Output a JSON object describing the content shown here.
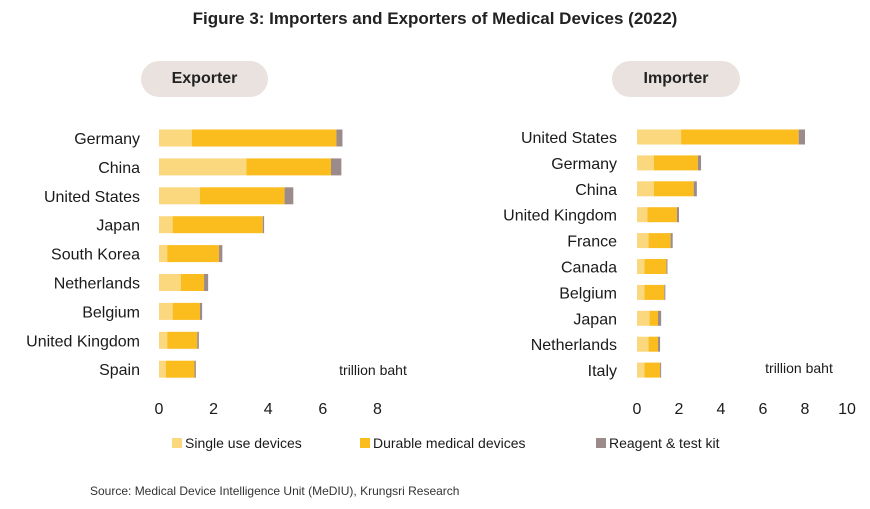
{
  "title": "Figure 3: Importers and Exporters of Medical Devices (2022)",
  "source": "Source: Medical Device Intelligence Unit (MeDIU), Krungsri Research",
  "legend": [
    {
      "name": "Single use devices",
      "color": "#fbd77e"
    },
    {
      "name": "Durable medical devices",
      "color": "#fbbc1e"
    },
    {
      "name": "Reagent & test kit",
      "color": "#9c8b8b"
    }
  ],
  "chart_data": [
    {
      "type": "bar",
      "orientation": "horizontal",
      "stacked": true,
      "title": "Exporter",
      "unit_label": "trillion  baht",
      "categories": [
        "Germany",
        "China",
        "United States",
        "Japan",
        "South Korea",
        "Netherlands",
        "Belgium",
        "United Kingdom",
        "Spain"
      ],
      "series": [
        {
          "name": "Single use devices",
          "values": [
            1.2,
            3.2,
            1.5,
            0.5,
            0.3,
            0.8,
            0.5,
            0.3,
            0.25
          ]
        },
        {
          "name": "Durable medical devices",
          "values": [
            5.3,
            3.1,
            3.1,
            3.3,
            1.9,
            0.85,
            1.0,
            1.1,
            1.05
          ]
        },
        {
          "name": "Reagent & test kit",
          "values": [
            0.22,
            0.38,
            0.32,
            0.05,
            0.12,
            0.15,
            0.08,
            0.06,
            0.05
          ]
        }
      ],
      "xticks": [
        0,
        2,
        4,
        6,
        8
      ],
      "xlim": [
        0,
        8
      ]
    },
    {
      "type": "bar",
      "orientation": "horizontal",
      "stacked": true,
      "title": "Importer",
      "unit_label": "trillion  baht",
      "categories": [
        "United States",
        "Germany",
        "China",
        "United Kingdom",
        "France",
        "Canada",
        "Belgium",
        "Japan",
        "Netherlands",
        "Italy"
      ],
      "series": [
        {
          "name": "Single use devices",
          "values": [
            2.1,
            0.8,
            0.8,
            0.5,
            0.55,
            0.35,
            0.35,
            0.6,
            0.55,
            0.35
          ]
        },
        {
          "name": "Durable medical devices",
          "values": [
            5.6,
            2.1,
            1.9,
            1.4,
            1.05,
            1.05,
            0.95,
            0.4,
            0.45,
            0.75
          ]
        },
        {
          "name": "Reagent & test kit",
          "values": [
            0.3,
            0.15,
            0.15,
            0.1,
            0.1,
            0.05,
            0.05,
            0.15,
            0.1,
            0.05
          ]
        }
      ],
      "xticks": [
        0,
        2,
        4,
        6,
        8,
        10
      ],
      "xlim": [
        0,
        10
      ]
    }
  ]
}
